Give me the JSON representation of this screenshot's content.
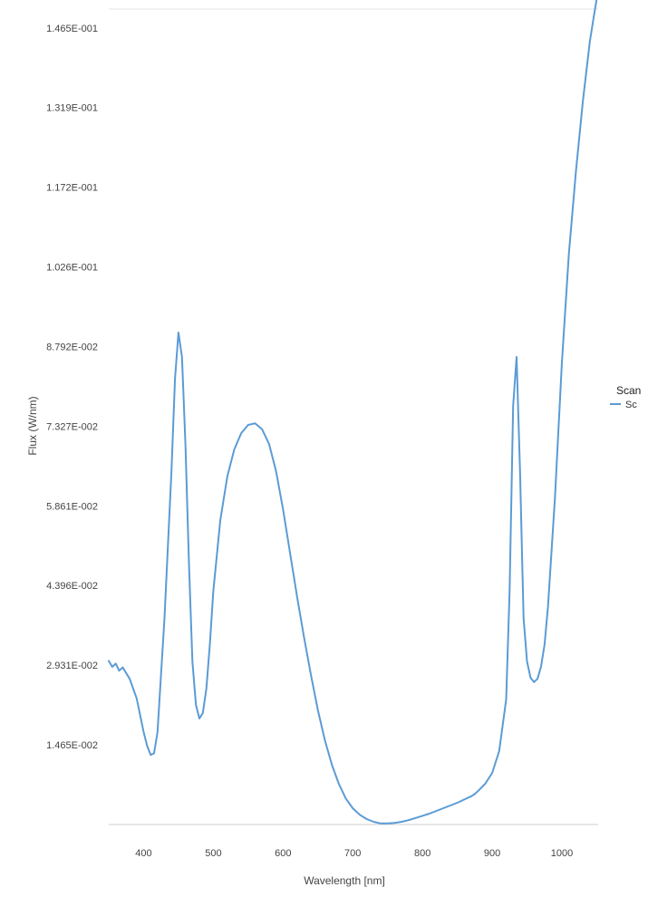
{
  "chart_data": {
    "type": "line",
    "title": "",
    "xlabel": "Wavelength [nm]",
    "ylabel": "Flux (W/nm)",
    "xlim": [
      350,
      1052
    ],
    "ylim": [
      0.0,
      0.15
    ],
    "grid": false,
    "legend_position": "right",
    "x_ticks": [
      400,
      500,
      600,
      700,
      800,
      900,
      1000
    ],
    "x_tick_labels": [
      "400",
      "500",
      "600",
      "700",
      "800",
      "900",
      "1000"
    ],
    "y_ticks": [
      0.01465,
      0.02931,
      0.04396,
      0.05861,
      0.07327,
      0.08792,
      0.10258,
      0.11723,
      0.13188,
      0.14654
    ],
    "y_tick_labels": [
      "1.465E-002",
      "2.931E-002",
      "4.396E-002",
      "5.861E-002",
      "7.327E-002",
      "8.792E-002",
      "1.026E-001",
      "1.172E-001",
      "1.319E-001",
      "1.465E-001"
    ],
    "legend": {
      "title": "Scan",
      "entries": [
        "Sc"
      ]
    },
    "series": [
      {
        "color": "#5b9bd5",
        "x": [
          350,
          355,
          360,
          365,
          370,
          380,
          390,
          400,
          405,
          410,
          415,
          420,
          430,
          440,
          445,
          450,
          455,
          460,
          465,
          470,
          475,
          480,
          485,
          490,
          495,
          500,
          510,
          520,
          530,
          540,
          550,
          560,
          570,
          580,
          590,
          600,
          610,
          620,
          630,
          640,
          650,
          660,
          670,
          680,
          690,
          700,
          710,
          720,
          730,
          740,
          750,
          760,
          770,
          780,
          790,
          800,
          810,
          820,
          830,
          840,
          850,
          860,
          870,
          875,
          880,
          890,
          900,
          910,
          920,
          925,
          930,
          935,
          940,
          945,
          950,
          955,
          960,
          965,
          970,
          975,
          980,
          990,
          1000,
          1010,
          1020,
          1030,
          1040,
          1045,
          1050
        ],
        "y": [
          0.0301,
          0.029,
          0.0296,
          0.0283,
          0.0289,
          0.0268,
          0.0232,
          0.017,
          0.0145,
          0.0128,
          0.0131,
          0.017,
          0.038,
          0.065,
          0.082,
          0.0905,
          0.086,
          0.07,
          0.048,
          0.03,
          0.022,
          0.0195,
          0.0205,
          0.025,
          0.033,
          0.043,
          0.056,
          0.064,
          0.069,
          0.072,
          0.0735,
          0.0738,
          0.0727,
          0.07,
          0.065,
          0.058,
          0.05,
          0.042,
          0.0345,
          0.0275,
          0.021,
          0.0155,
          0.011,
          0.0075,
          0.0048,
          0.003,
          0.0018,
          0.001,
          0.0005,
          0.0002,
          0.0002,
          0.0003,
          0.0005,
          0.0008,
          0.0012,
          0.0016,
          0.002,
          0.0025,
          0.003,
          0.0035,
          0.004,
          0.0046,
          0.0052,
          0.0056,
          0.0062,
          0.0075,
          0.0095,
          0.0135,
          0.023,
          0.043,
          0.077,
          0.086,
          0.065,
          0.038,
          0.03,
          0.027,
          0.0262,
          0.0268,
          0.029,
          0.033,
          0.04,
          0.06,
          0.085,
          0.105,
          0.12,
          0.133,
          0.144,
          0.148,
          0.152
        ]
      }
    ]
  }
}
